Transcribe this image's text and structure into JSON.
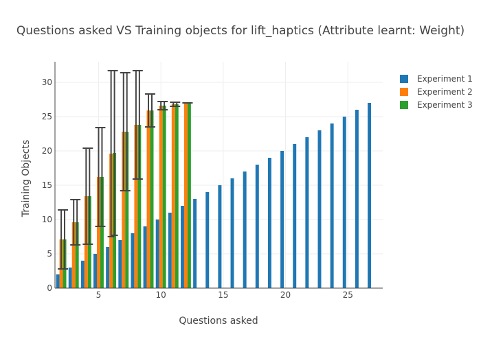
{
  "chart_data": {
    "type": "bar",
    "title": "Questions asked VS Training objects for lift_haptics (Attribute learnt: Weight)",
    "xlabel": "Questions asked",
    "ylabel": "Training Objects",
    "xlim": [
      1.5,
      27.8
    ],
    "ylim": [
      0,
      33
    ],
    "x_ticks": [
      5,
      10,
      15,
      20,
      25
    ],
    "y_ticks": [
      0,
      5,
      10,
      15,
      20,
      25,
      30
    ],
    "grid": true,
    "legend_position": "top-right",
    "series": [
      {
        "name": "Experiment 1",
        "color": "#1f77b4",
        "x": [
          2,
          3,
          4,
          5,
          6,
          7,
          8,
          9,
          10,
          11,
          12,
          13,
          14,
          15,
          16,
          17,
          18,
          19,
          20,
          21,
          22,
          23,
          24,
          25,
          26,
          27
        ],
        "values": [
          2,
          3,
          4,
          5,
          6,
          7,
          8,
          9,
          10,
          11,
          12,
          13,
          14,
          15,
          16,
          17,
          18,
          19,
          20,
          21,
          22,
          23,
          24,
          25,
          26,
          27
        ]
      },
      {
        "name": "Experiment 2",
        "color": "#ff7f0e",
        "x": [
          2,
          3,
          4,
          5,
          6,
          7,
          8,
          9,
          10,
          11,
          12
        ],
        "values": [
          7.1,
          9.6,
          13.4,
          16.2,
          19.6,
          22.8,
          23.8,
          25.9,
          26.6,
          26.8,
          27
        ],
        "error": [
          4.3,
          3.3,
          7.0,
          7.2,
          12.1,
          8.6,
          7.9,
          2.4,
          0.6,
          0.3,
          0
        ]
      },
      {
        "name": "Experiment 3",
        "color": "#2ca02c",
        "x": [
          2,
          3,
          4,
          5,
          6,
          7,
          8,
          9,
          10,
          11,
          12
        ],
        "values": [
          7.1,
          9.6,
          13.4,
          16.2,
          19.7,
          22.8,
          23.8,
          25.9,
          26.6,
          26.8,
          27
        ],
        "error": [
          4.3,
          3.3,
          7.0,
          7.2,
          12.0,
          8.6,
          7.9,
          2.4,
          0.6,
          0.3,
          0
        ]
      }
    ]
  }
}
